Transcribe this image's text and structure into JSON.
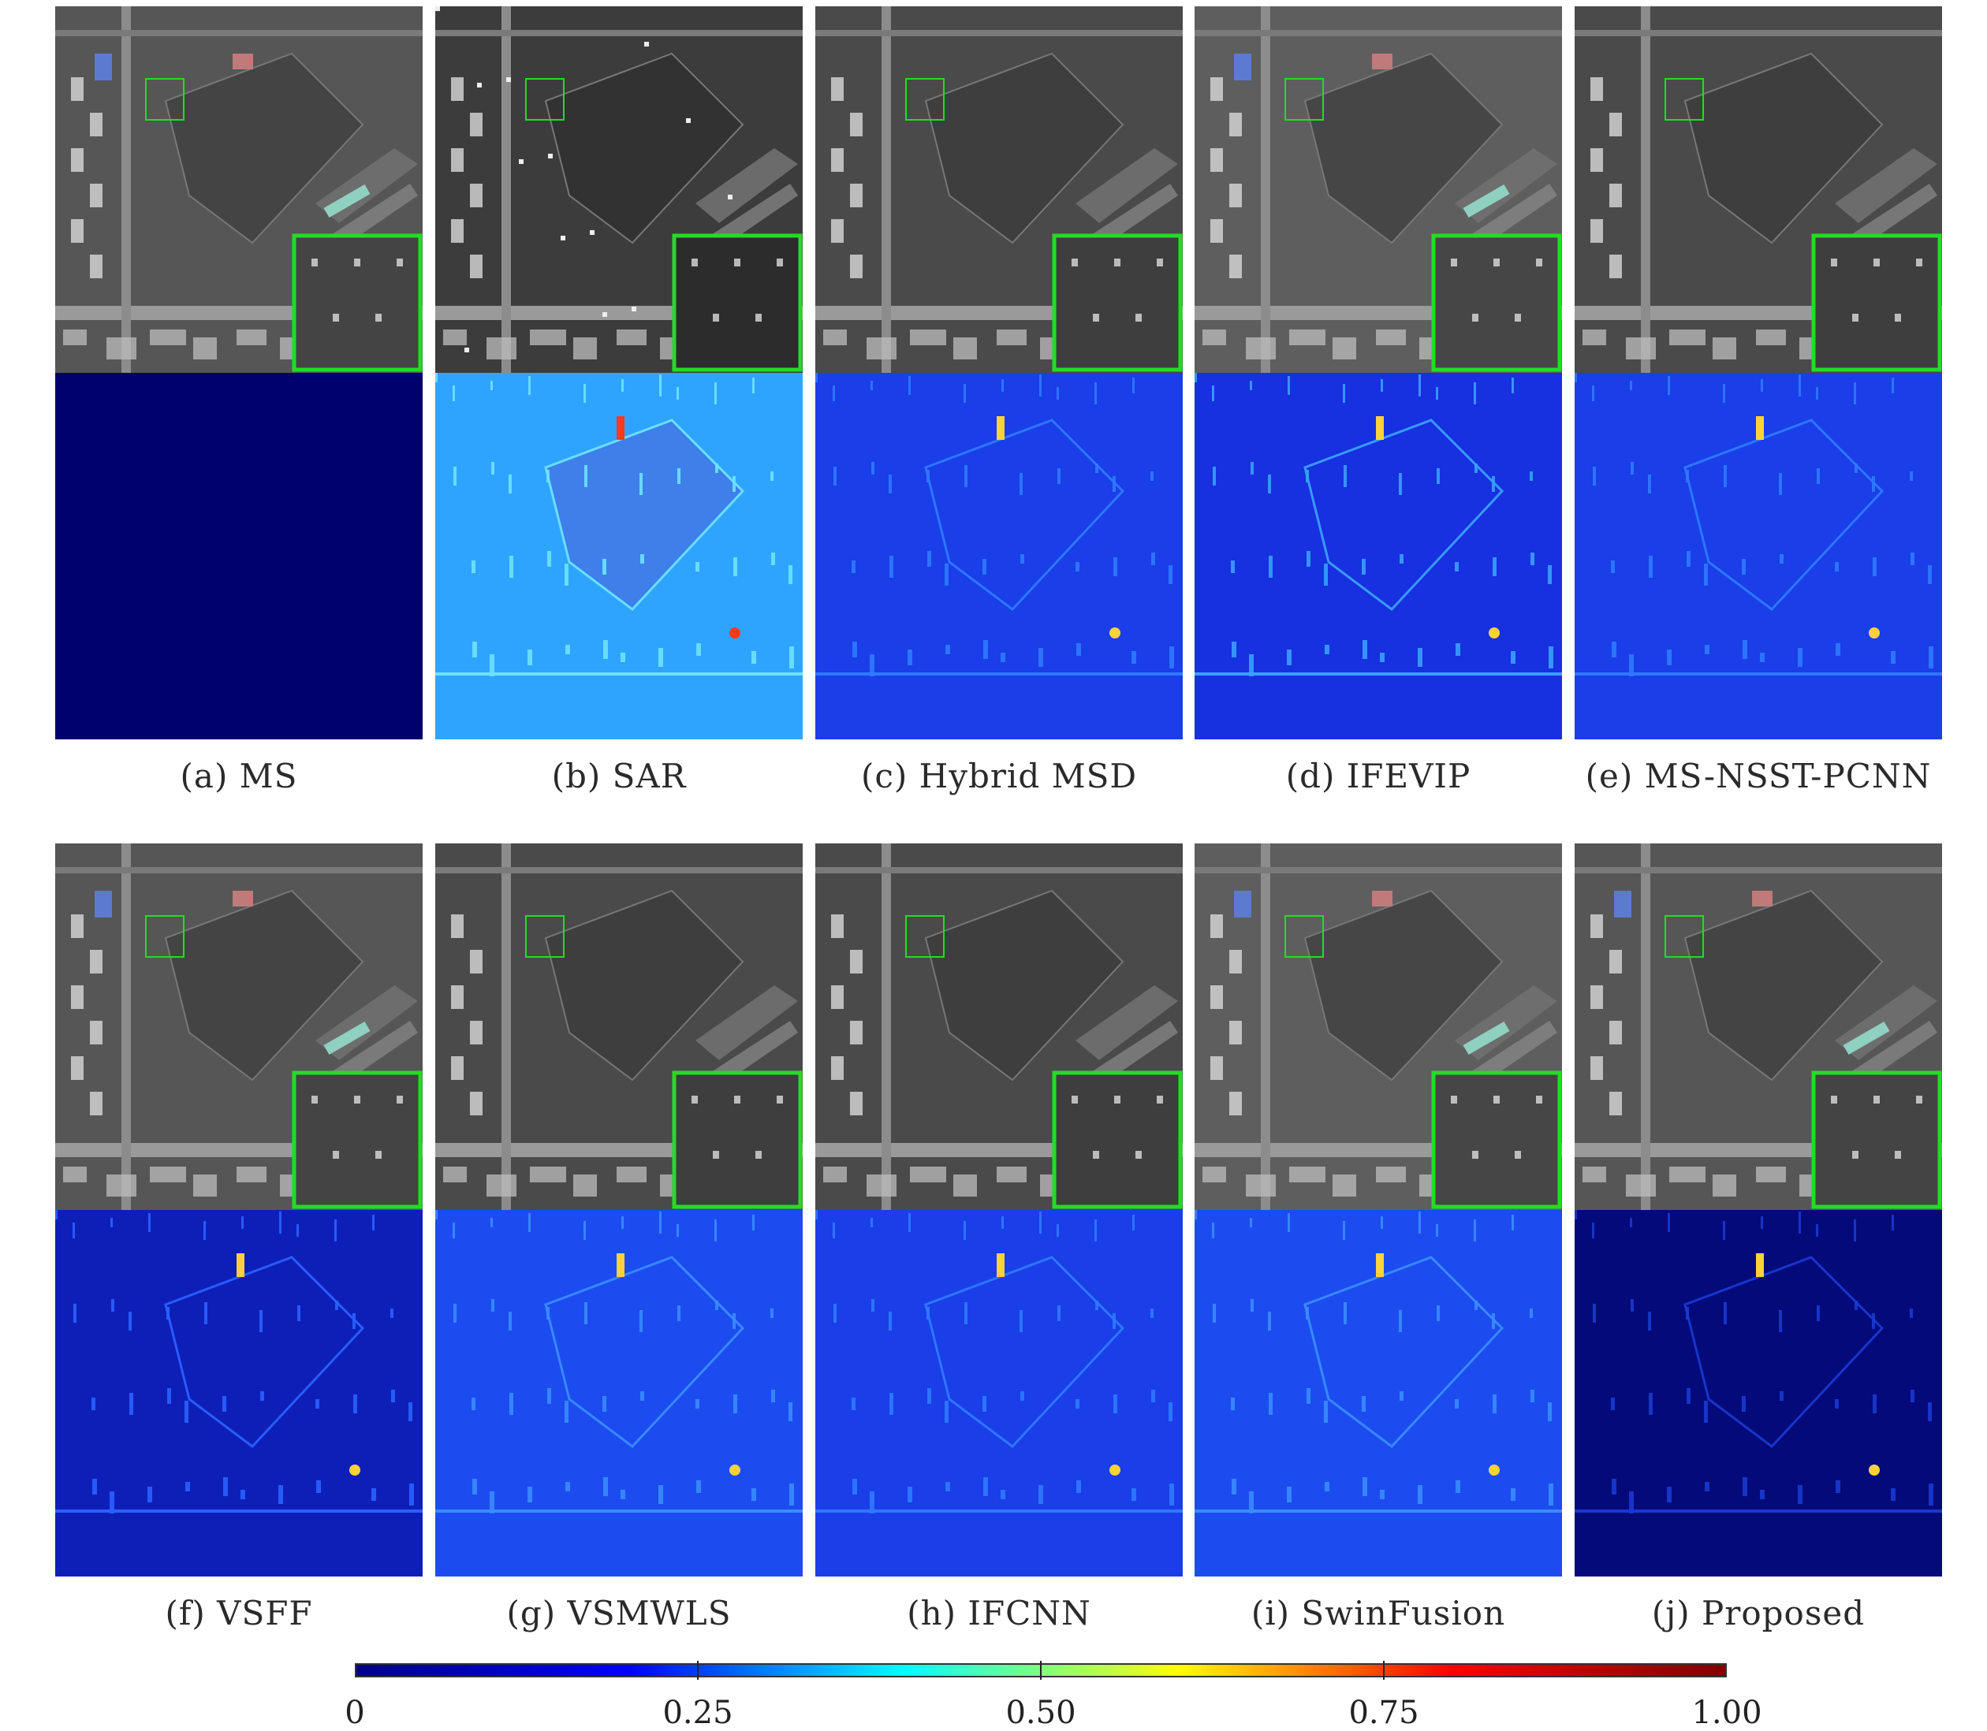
{
  "figure": {
    "panels": [
      {
        "label": "(a) MS",
        "fused": "ms",
        "error": "uniform"
      },
      {
        "label": "(b) SAR",
        "fused": "sar",
        "error": "high"
      },
      {
        "label": "(c) Hybrid MSD",
        "fused": "gray",
        "error": "low"
      },
      {
        "label": "(d) IFEVIP",
        "fused": "bright",
        "error": "mid"
      },
      {
        "label": "(e) MS-NSST-PCNN",
        "fused": "gray",
        "error": "low"
      },
      {
        "label": "(f) VSFF",
        "fused": "ms",
        "error": "verylow"
      },
      {
        "label": "(g) VSMWLS",
        "fused": "gray",
        "error": "lowmid"
      },
      {
        "label": "(h) IFCNN",
        "fused": "gray",
        "error": "low"
      },
      {
        "label": "(i) SwinFusion",
        "fused": "bright",
        "error": "lowmid"
      },
      {
        "label": "(j) Proposed",
        "fused": "ms",
        "error": "minimal"
      }
    ],
    "colorbar": {
      "ticks": [
        "0",
        "0.25",
        "0.50",
        "0.75",
        "1.00"
      ],
      "tick_values": [
        0,
        0.25,
        0.5,
        0.75,
        1.0
      ],
      "colormap": "jet",
      "colors": [
        "#00008f",
        "#0000ff",
        "#00ffff",
        "#ffff00",
        "#ff0000",
        "#800000"
      ]
    },
    "zoom_box_color": "#22dd22"
  }
}
